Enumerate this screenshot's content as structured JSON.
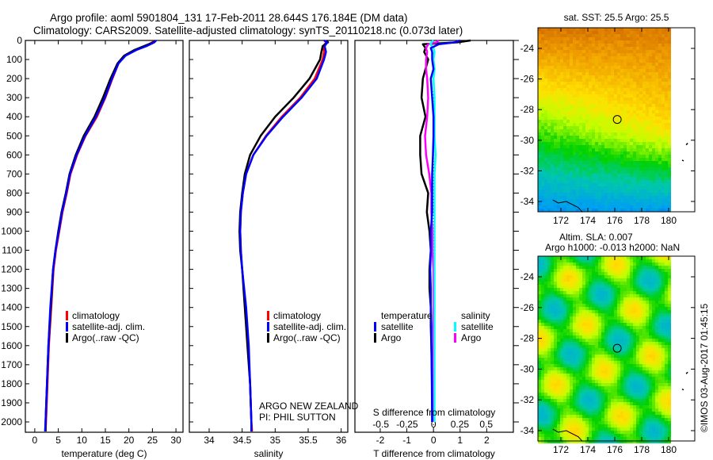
{
  "title": {
    "line1": "Argo profile: aoml 5901804_131 17-Feb-2011 28.644S 176.184E (DM data)",
    "line2": "Climatology: CARS2009. Satellite-adjusted climatology: synTS_20110218.nc (0.073d later)"
  },
  "colors": {
    "climatology": "#ff0000",
    "satellite": "#0000ff",
    "argo": "#000000",
    "s_satellite": "#00ffff",
    "s_argo": "#ff00ff"
  },
  "chart_data": [
    {
      "type": "line",
      "id": "temperature",
      "xlabel": "temperature (deg C)",
      "ylabel": "",
      "xlim": [
        -2,
        31.5
      ],
      "ylim": [
        2060,
        0
      ],
      "xticks": [
        "0",
        "5",
        "10",
        "15",
        "20",
        "25",
        "30"
      ],
      "xtick_values": [
        0,
        5,
        10,
        15,
        20,
        25,
        30
      ],
      "yticks": [
        "0",
        "100",
        "200",
        "300",
        "400",
        "500",
        "600",
        "700",
        "800",
        "900",
        "1000",
        "1100",
        "1200",
        "1300",
        "1400",
        "1500",
        "1600",
        "1700",
        "1800",
        "1900",
        "2000"
      ],
      "ytick_values": [
        0,
        100,
        200,
        300,
        400,
        500,
        600,
        700,
        800,
        900,
        1000,
        1100,
        1200,
        1300,
        1400,
        1500,
        1600,
        1700,
        1800,
        1900,
        2000
      ],
      "legend": [
        "climatology",
        "satellite-adj. clim.",
        "Argo(..raw -QC)"
      ],
      "depth": [
        0,
        10,
        30,
        50,
        80,
        120,
        200,
        300,
        400,
        500,
        600,
        700,
        800,
        900,
        1000,
        1100,
        1200,
        1400,
        1600,
        1800,
        2000,
        2050
      ],
      "series": [
        {
          "name": "climatology",
          "values": [
            25.3,
            25.0,
            23.5,
            21.5,
            19.2,
            17.8,
            16.5,
            15.0,
            13.2,
            10.8,
            9.0,
            7.6,
            6.8,
            5.9,
            5.2,
            4.5,
            4.0,
            3.5,
            3.0,
            2.7,
            2.4,
            2.3
          ]
        },
        {
          "name": "satellite-adj. clim.",
          "values": [
            25.8,
            25.4,
            23.7,
            21.6,
            19.3,
            17.8,
            16.4,
            14.9,
            13.0,
            10.7,
            8.9,
            7.5,
            6.7,
            5.8,
            5.1,
            4.4,
            3.9,
            3.3,
            2.9,
            2.6,
            2.3,
            2.2
          ]
        },
        {
          "name": "Argo(..raw -QC)",
          "values": [
            25.5,
            25.2,
            23.2,
            21.2,
            19.0,
            17.6,
            16.1,
            14.5,
            12.7,
            10.4,
            8.7,
            7.4,
            6.6,
            5.7,
            5.0,
            4.4,
            3.9,
            3.4,
            2.9,
            2.6,
            2.3,
            2.3
          ]
        }
      ]
    },
    {
      "type": "line",
      "id": "salinity",
      "xlabel": "salinity",
      "xlim": [
        33.7,
        36.1
      ],
      "ylim": [
        2060,
        0
      ],
      "xticks": [
        "34",
        "34.5",
        "35",
        "35.5",
        "36"
      ],
      "xtick_values": [
        34,
        34.5,
        35,
        35.5,
        36
      ],
      "legend": [
        "climatology",
        "satellite-adj. clim.",
        "Argo(..raw -QC)"
      ],
      "annotation": [
        "ARGO NEW ZEALAND",
        "PI: PHIL SUTTON"
      ],
      "depth": [
        0,
        10,
        30,
        60,
        100,
        200,
        300,
        400,
        500,
        600,
        700,
        800,
        900,
        1000,
        1100,
        1200,
        1400,
        1600,
        1800,
        2000,
        2050
      ],
      "series": [
        {
          "name": "climatology",
          "values": [
            35.76,
            35.77,
            35.73,
            35.74,
            35.72,
            35.6,
            35.38,
            35.1,
            34.86,
            34.67,
            34.56,
            34.51,
            34.48,
            34.47,
            34.48,
            34.5,
            34.55,
            34.59,
            34.62,
            34.64,
            34.65
          ]
        },
        {
          "name": "satellite-adj. clim.",
          "values": [
            35.74,
            35.79,
            35.75,
            35.77,
            35.74,
            35.63,
            35.4,
            35.12,
            34.87,
            34.67,
            34.56,
            34.51,
            34.48,
            34.47,
            34.48,
            34.5,
            34.56,
            34.6,
            34.62,
            34.64,
            34.64
          ]
        },
        {
          "name": "Argo(..raw -QC)",
          "values": [
            35.78,
            35.8,
            35.72,
            35.7,
            35.68,
            35.52,
            35.28,
            35.0,
            34.78,
            34.62,
            34.54,
            34.5,
            34.47,
            34.46,
            34.47,
            34.5,
            34.54,
            34.58,
            34.62,
            34.64,
            34.64
          ]
        }
      ]
    },
    {
      "type": "line",
      "id": "difference",
      "xlabel": "T difference from climatology",
      "xlabel2": "S difference from climatology",
      "xlim": [
        -2.95,
        3.0
      ],
      "ylim": [
        2060,
        0
      ],
      "xticks": [
        "-2",
        "-1",
        "0",
        "1",
        "2"
      ],
      "xtick_values": [
        -2,
        -1,
        0,
        1,
        2
      ],
      "s_xticks": [
        "-0.5",
        "-0.25",
        "0",
        "0.25",
        "0.5"
      ],
      "s_xtick_values": [
        -0.5,
        -0.25,
        0,
        0.25,
        0.5
      ],
      "legend": {
        "temperature_heading": "temperature",
        "salinity_heading": "salinity",
        "t_satellite": "satellite",
        "t_argo": "Argo",
        "s_satellite": "satellite",
        "s_argo": "Argo"
      },
      "depth": [
        0,
        10,
        20,
        40,
        60,
        100,
        150,
        200,
        300,
        400,
        500,
        600,
        700,
        800,
        900,
        1000,
        1100,
        1200,
        1300,
        1400,
        1500,
        1600,
        1800,
        2000
      ],
      "series": [
        {
          "name": "T satellite",
          "quantity": "T",
          "values": [
            1.0,
            0.8,
            0.2,
            -0.1,
            -0.05,
            -0.05,
            0.0,
            -0.1,
            -0.05,
            0.0,
            0.0,
            -0.02,
            -0.05,
            -0.05,
            -0.05,
            -0.1,
            -0.1,
            -0.12,
            -0.1,
            -0.1,
            -0.08,
            -0.08,
            -0.06,
            -0.05
          ]
        },
        {
          "name": "T Argo",
          "quantity": "T",
          "values": [
            1.4,
            0.9,
            -0.4,
            -0.3,
            -0.35,
            -0.2,
            -0.3,
            -0.4,
            -0.45,
            -0.3,
            -0.5,
            -0.5,
            -0.45,
            -0.2,
            -0.25,
            -0.15,
            -0.1,
            -0.15,
            -0.15,
            -0.1,
            -0.1,
            -0.08,
            -0.05,
            -0.05
          ]
        },
        {
          "name": "S satellite",
          "quantity": "S",
          "values": [
            0.0,
            -0.02,
            -0.03,
            0.0,
            0.01,
            0.0,
            0.01,
            0.0,
            0.01,
            0.01,
            0.01,
            0.02,
            0.01,
            0.01,
            0.01,
            0.01,
            0.01,
            0.01,
            0.01,
            0.01,
            0.01,
            0.01,
            0.01,
            0.01
          ]
        },
        {
          "name": "S Argo",
          "quantity": "S",
          "values": [
            0.05,
            0.03,
            -0.05,
            -0.07,
            -0.06,
            -0.07,
            -0.07,
            -0.06,
            -0.05,
            -0.06,
            -0.08,
            -0.07,
            -0.04,
            -0.02,
            -0.02,
            -0.01,
            -0.01,
            0.0,
            0.0,
            0.0,
            0.0,
            0.0,
            0.0,
            0.0
          ]
        }
      ]
    }
  ],
  "maps": [
    {
      "id": "sst",
      "title": "sat. SST: 25.5 Argo: 25.5",
      "xticks": [
        "172",
        "174",
        "176",
        "178",
        "180"
      ],
      "yticks": [
        "-24",
        "-26",
        "-28",
        "-30",
        "-32",
        "-34"
      ],
      "argo_lon": 176.184,
      "argo_lat": -28.644
    },
    {
      "id": "sla",
      "title1": "Altim. SLA: 0.007",
      "title2": "Argo h1000: -0.013 h2000: NaN",
      "xticks": [
        "172",
        "174",
        "176",
        "178",
        "180"
      ],
      "yticks": [
        "-24",
        "-26",
        "-28",
        "-30",
        "-32",
        "-34"
      ],
      "argo_lon": 176.184,
      "argo_lat": -28.644
    }
  ],
  "credit": "©IMOS 03-Aug-2017 01:45:15"
}
